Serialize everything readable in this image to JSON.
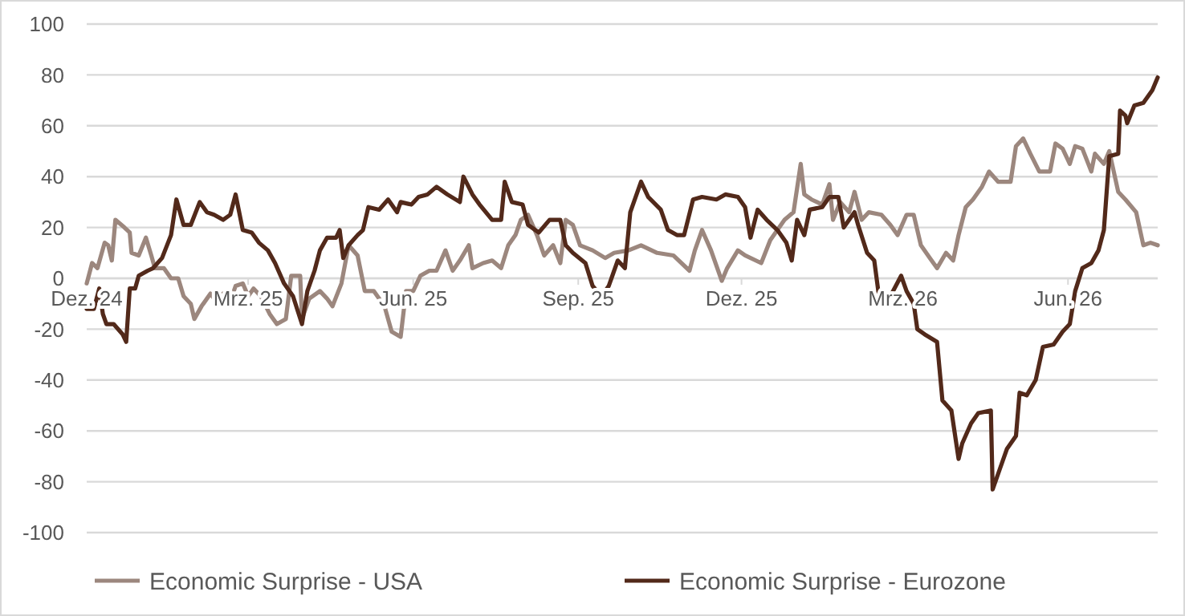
{
  "chart_data": {
    "type": "line",
    "xlim": [
      "2024-12-01",
      "2026-07-21"
    ],
    "xticks": [
      {
        "value": "2024-12-01",
        "label": "Dez. 24"
      },
      {
        "value": "2025-03-01",
        "label": "Mrz. 25"
      },
      {
        "value": "2025-06-01",
        "label": "Jun. 25"
      },
      {
        "value": "2025-09-01",
        "label": "Sep. 25"
      },
      {
        "value": "2025-12-01",
        "label": "Dez. 25"
      },
      {
        "value": "2026-03-01",
        "label": "Mrz. 26"
      },
      {
        "value": "2026-06-01",
        "label": "Jun. 26"
      }
    ],
    "ylim": [
      -100,
      100
    ],
    "yticks": [
      -100,
      -80,
      -60,
      -40,
      -20,
      0,
      20,
      40,
      60,
      80,
      100
    ],
    "grid": "y",
    "legend": "bottom",
    "marker": "none",
    "line_style": "solid",
    "series": [
      {
        "name": "Economic Surprise - USA",
        "color": "#9c877e",
        "x": [
          "2024-12-01",
          "2024-12-04",
          "2024-12-07",
          "2024-12-11",
          "2024-12-13",
          "2024-12-15",
          "2024-12-17",
          "2024-12-22",
          "2024-12-25",
          "2024-12-26",
          "2024-12-30",
          "2025-01-03",
          "2025-01-06",
          "2025-01-08",
          "2025-01-13",
          "2025-01-17",
          "2025-01-21",
          "2025-01-24",
          "2025-01-28",
          "2025-01-30",
          "2025-02-03",
          "2025-02-08",
          "2025-02-10",
          "2025-02-15",
          "2025-02-18",
          "2025-02-22",
          "2025-02-26",
          "2025-03-01",
          "2025-03-04",
          "2025-03-08",
          "2025-03-13",
          "2025-03-17",
          "2025-03-22",
          "2025-03-25",
          "2025-03-30",
          "2025-03-31",
          "2025-04-04",
          "2025-04-10",
          "2025-04-14",
          "2025-04-17",
          "2025-04-22",
          "2025-04-26",
          "2025-05-01",
          "2025-05-05",
          "2025-05-10",
          "2025-05-16",
          "2025-05-20",
          "2025-05-25",
          "2025-05-28",
          "2025-06-01",
          "2025-06-05",
          "2025-06-10",
          "2025-06-14",
          "2025-06-19",
          "2025-06-23",
          "2025-06-27",
          "2025-07-02",
          "2025-07-04",
          "2025-07-10",
          "2025-07-15",
          "2025-07-20",
          "2025-07-24",
          "2025-07-28",
          "2025-07-31",
          "2025-08-04",
          "2025-08-09",
          "2025-08-13",
          "2025-08-18",
          "2025-08-22",
          "2025-08-25",
          "2025-08-29",
          "2025-09-02",
          "2025-09-09",
          "2025-09-16",
          "2025-09-21",
          "2025-09-29",
          "2025-10-06",
          "2025-10-15",
          "2025-10-24",
          "2025-11-02",
          "2025-11-05",
          "2025-11-09",
          "2025-11-14",
          "2025-11-20",
          "2025-11-23",
          "2025-11-29",
          "2025-12-03",
          "2025-12-12",
          "2025-12-17",
          "2025-12-25",
          "2025-12-30",
          "2026-01-03",
          "2026-01-05",
          "2026-01-09",
          "2026-01-15",
          "2026-01-19",
          "2026-01-21",
          "2026-01-25",
          "2026-01-30",
          "2026-02-02",
          "2026-02-06",
          "2026-02-10",
          "2026-02-17",
          "2026-02-22",
          "2026-02-26",
          "2026-03-03",
          "2026-03-07",
          "2026-03-11",
          "2026-03-16",
          "2026-03-20",
          "2026-03-25",
          "2026-03-29",
          "2026-04-01",
          "2026-04-05",
          "2026-04-09",
          "2026-04-14",
          "2026-04-18",
          "2026-04-23",
          "2026-04-30",
          "2026-05-03",
          "2026-05-07",
          "2026-05-11",
          "2026-05-16",
          "2026-05-22",
          "2026-05-25",
          "2026-05-29",
          "2026-06-02",
          "2026-06-05",
          "2026-06-09",
          "2026-06-14",
          "2026-06-16",
          "2026-06-21",
          "2026-06-24",
          "2026-06-29",
          "2026-07-03",
          "2026-07-09",
          "2026-07-13",
          "2026-07-17",
          "2026-07-21"
        ],
        "values": [
          -2,
          6,
          4,
          14,
          13,
          7,
          23,
          20,
          18,
          10,
          9,
          16,
          9,
          4,
          4,
          0,
          0,
          -7,
          -10,
          -16,
          -11,
          -6,
          -8,
          -6,
          -11,
          -3,
          -2,
          -7,
          -4,
          -7,
          -14,
          -18,
          -16,
          1,
          1,
          -16,
          -8,
          -5,
          -8,
          -11,
          -2,
          13,
          9,
          -5,
          -5,
          -11,
          -21,
          -23,
          -5,
          -5,
          1,
          3,
          3,
          11,
          3,
          7,
          13,
          4,
          6,
          7,
          4,
          13,
          17,
          23,
          25,
          17,
          9,
          13,
          6,
          23,
          21,
          13,
          11,
          8,
          10,
          11,
          13,
          10,
          9,
          3,
          11,
          19,
          11,
          -1,
          4,
          11,
          9,
          6,
          15,
          23,
          26,
          45,
          33,
          31,
          29,
          37,
          23,
          30,
          26,
          34,
          23,
          26,
          25,
          21,
          17,
          25,
          25,
          13,
          8,
          4,
          10,
          7,
          17,
          28,
          31,
          36,
          42,
          38,
          38,
          52,
          55,
          49,
          42,
          42,
          53,
          51,
          45,
          52,
          51,
          42,
          49,
          45,
          50,
          34,
          31,
          26,
          13,
          14,
          13
        ]
      },
      {
        "name": "Economic Surprise - Eurozone",
        "color": "#52291a",
        "x": [
          "2024-12-01",
          "2024-12-05",
          "2024-12-08",
          "2024-12-10",
          "2024-12-12",
          "2024-12-16",
          "2024-12-21",
          "2024-12-23",
          "2024-12-25",
          "2024-12-28",
          "2024-12-30",
          "2025-01-04",
          "2025-01-07",
          "2025-01-12",
          "2025-01-17",
          "2025-01-20",
          "2025-01-24",
          "2025-01-28",
          "2025-02-02",
          "2025-02-06",
          "2025-02-10",
          "2025-02-15",
          "2025-02-19",
          "2025-02-22",
          "2025-02-26",
          "2025-03-03",
          "2025-03-07",
          "2025-03-12",
          "2025-03-16",
          "2025-03-21",
          "2025-03-26",
          "2025-03-31",
          "2025-04-03",
          "2025-04-07",
          "2025-04-10",
          "2025-04-14",
          "2025-04-19",
          "2025-04-21",
          "2025-04-23",
          "2025-04-26",
          "2025-05-01",
          "2025-05-04",
          "2025-05-07",
          "2025-05-13",
          "2025-05-18",
          "2025-05-23",
          "2025-05-25",
          "2025-05-31",
          "2025-06-04",
          "2025-06-09",
          "2025-06-14",
          "2025-06-20",
          "2025-06-27",
          "2025-06-29",
          "2025-07-04",
          "2025-07-08",
          "2025-07-15",
          "2025-07-20",
          "2025-07-22",
          "2025-07-26",
          "2025-08-01",
          "2025-08-04",
          "2025-08-10",
          "2025-08-16",
          "2025-08-22",
          "2025-08-25",
          "2025-08-29",
          "2025-09-05",
          "2025-09-09",
          "2025-09-14",
          "2025-09-18",
          "2025-09-23",
          "2025-09-27",
          "2025-09-30",
          "2025-10-06",
          "2025-10-10",
          "2025-10-17",
          "2025-10-21",
          "2025-10-26",
          "2025-10-30",
          "2025-11-04",
          "2025-11-09",
          "2025-11-17",
          "2025-11-22",
          "2025-11-29",
          "2025-12-03",
          "2025-12-06",
          "2025-12-10",
          "2025-12-15",
          "2025-12-21",
          "2025-12-26",
          "2025-12-29",
          "2026-01-01",
          "2026-01-05",
          "2026-01-08",
          "2026-01-15",
          "2026-01-19",
          "2026-01-24",
          "2026-01-27",
          "2026-02-02",
          "2026-02-04",
          "2026-02-09",
          "2026-02-13",
          "2026-02-16",
          "2026-02-22",
          "2026-02-28",
          "2026-03-03",
          "2026-03-07",
          "2026-03-09",
          "2026-03-13",
          "2026-03-20",
          "2026-03-23",
          "2026-03-28",
          "2026-04-01",
          "2026-04-03",
          "2026-04-08",
          "2026-04-12",
          "2026-04-19",
          "2026-04-20",
          "2026-04-24",
          "2026-04-28",
          "2026-05-03",
          "2026-05-05",
          "2026-05-09",
          "2026-05-14",
          "2026-05-18",
          "2026-05-24",
          "2026-05-29",
          "2026-06-02",
          "2026-06-05",
          "2026-06-09",
          "2026-06-14",
          "2026-06-18",
          "2026-06-21",
          "2026-06-24",
          "2026-06-29",
          "2026-06-30",
          "2026-07-03",
          "2026-07-04",
          "2026-07-08",
          "2026-07-13",
          "2026-07-18",
          "2026-07-21"
        ],
        "values": [
          -12,
          -12,
          -4,
          -14,
          -18,
          -18,
          -22,
          -25,
          -4,
          -4,
          1,
          3,
          4,
          8,
          17,
          31,
          21,
          21,
          30,
          26,
          25,
          23,
          25,
          33,
          19,
          18,
          14,
          11,
          6,
          -2,
          -7,
          -18,
          -5,
          3,
          11,
          16,
          16,
          19,
          8,
          13,
          17,
          19,
          28,
          27,
          31,
          26,
          30,
          29,
          32,
          33,
          36,
          33,
          30,
          40,
          33,
          29,
          23,
          23,
          38,
          30,
          29,
          21,
          18,
          23,
          23,
          13,
          10,
          6,
          -3,
          -7,
          -3,
          7,
          4,
          26,
          38,
          32,
          27,
          19,
          17,
          17,
          31,
          32,
          31,
          33,
          32,
          28,
          16,
          27,
          23,
          19,
          14,
          7,
          23,
          17,
          27,
          28,
          32,
          32,
          20,
          26,
          21,
          10,
          7,
          -9,
          -7,
          1,
          -5,
          -10,
          -20,
          -22,
          -25,
          -48,
          -52,
          -71,
          -65,
          -57,
          -53,
          -52,
          -83,
          -75,
          -67,
          -62,
          -45,
          -46,
          -40,
          -27,
          -26,
          -21,
          -18,
          -5,
          4,
          6,
          11,
          19,
          48,
          49,
          66,
          64,
          61,
          68,
          69,
          74,
          79
        ]
      }
    ]
  }
}
